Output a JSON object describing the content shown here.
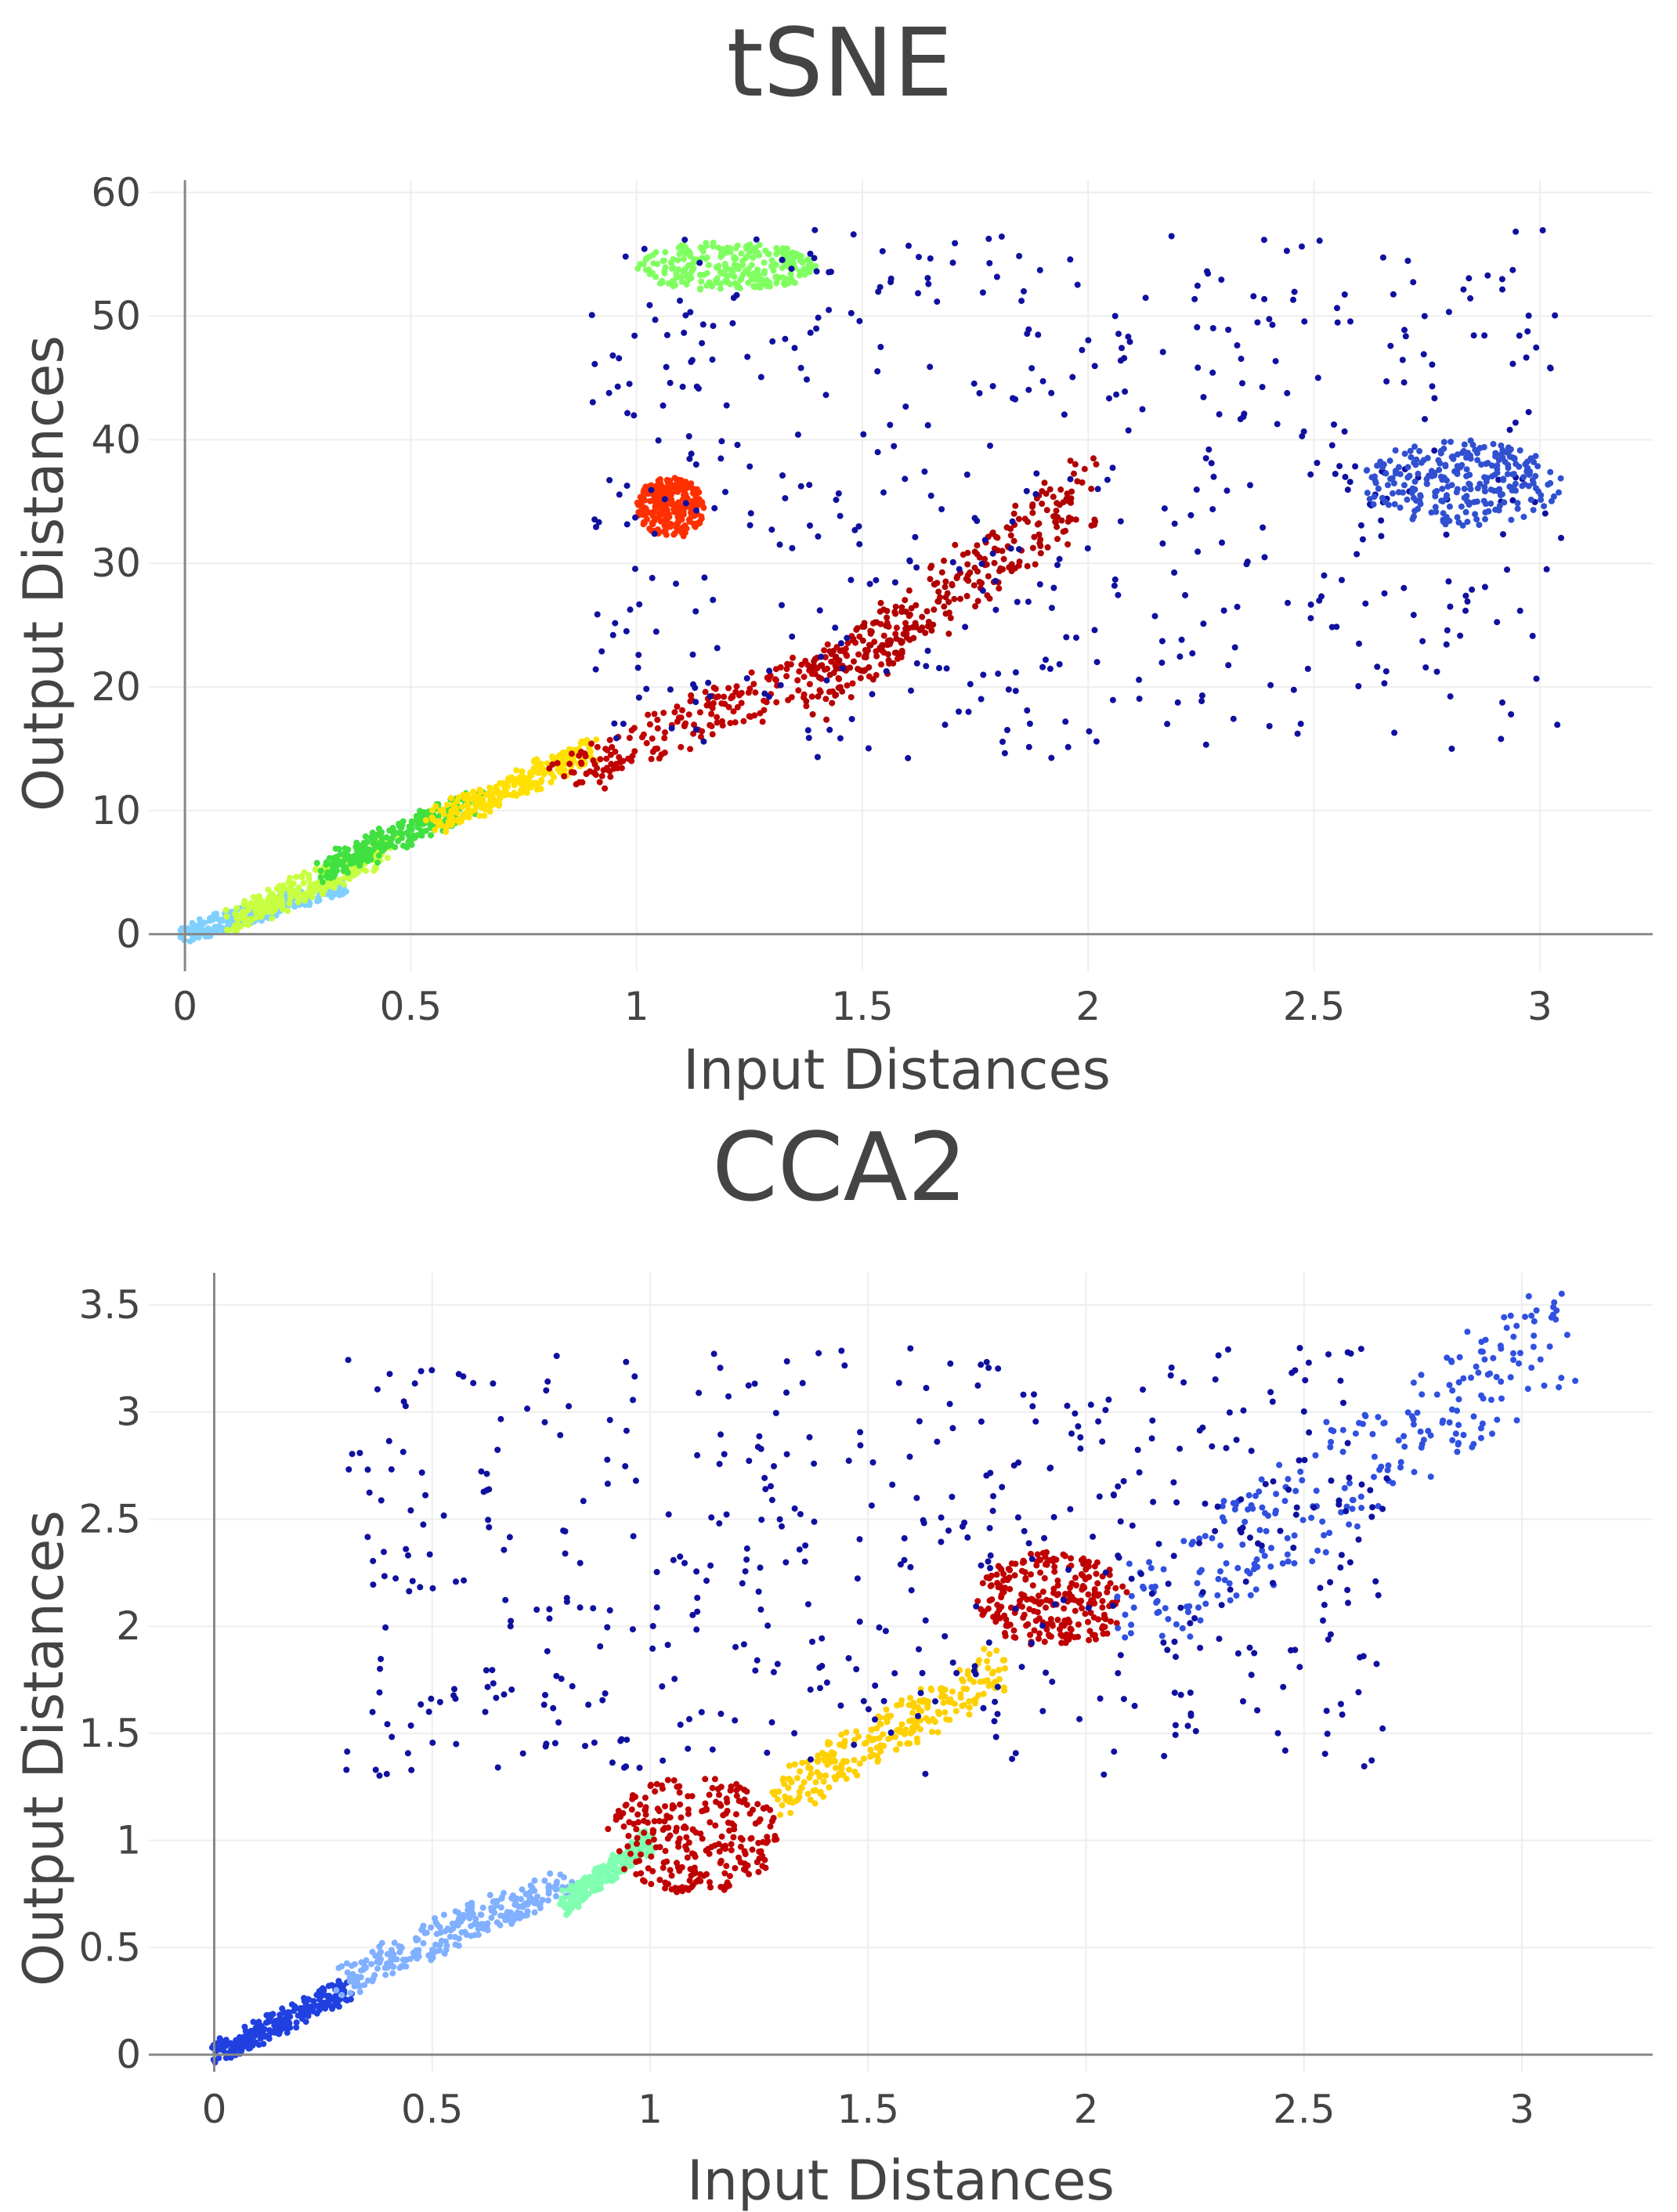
{
  "chart_data": [
    {
      "id": "tsne",
      "type": "scatter",
      "title": "tSNE",
      "xlabel": "Input Distances",
      "ylabel": "Output Distances",
      "xlim": [
        -0.08,
        3.25
      ],
      "ylim": [
        -3,
        61
      ],
      "xticks": [
        0,
        0.5,
        1,
        1.5,
        2,
        2.5,
        3
      ],
      "xtick_labels": [
        "0",
        "0.5",
        "1",
        "1.5",
        "2",
        "2.5",
        "3"
      ],
      "yticks": [
        0,
        10,
        20,
        30,
        40,
        50,
        60
      ],
      "ytick_labels": [
        "0",
        "10",
        "20",
        "30",
        "40",
        "50",
        "60"
      ],
      "colorscale": "jet (point density: blue = sparse, red = dense)",
      "clusters": [
        {
          "region": "diagonal band near origin",
          "x": [
            0.0,
            0.35
          ],
          "y": [
            0,
            4
          ],
          "color": "#7fd0ff"
        },
        {
          "region": "diagonal band",
          "x": [
            0.1,
            0.45
          ],
          "y": [
            1,
            7
          ],
          "color": "#c8ff40"
        },
        {
          "region": "diagonal band",
          "x": [
            0.3,
            0.65
          ],
          "y": [
            5,
            11
          ],
          "color": "#40e040"
        },
        {
          "region": "diagonal band",
          "x": [
            0.55,
            0.9
          ],
          "y": [
            9,
            15
          ],
          "color": "#ffe000"
        },
        {
          "region": "lower dense lobe",
          "x": [
            0.85,
            1.6
          ],
          "y": [
            13,
            24
          ],
          "color": "#c00000"
        },
        {
          "region": "upper dense lobe",
          "x": [
            1.4,
            2.0
          ],
          "y": [
            20,
            36
          ],
          "color": "#b00000"
        },
        {
          "region": "small dense spot",
          "x": [
            1.0,
            1.15
          ],
          "y": [
            32,
            37
          ],
          "color": "#ff3000"
        },
        {
          "region": "top cluster",
          "x": [
            1.0,
            1.4
          ],
          "y": [
            52,
            56
          ],
          "color": "#80ff60"
        },
        {
          "region": "sparse upper field",
          "x": [
            0.9,
            3.05
          ],
          "y": [
            14,
            57
          ],
          "color": "#1010a0"
        },
        {
          "region": "far right arm",
          "x": [
            2.6,
            3.05
          ],
          "y": [
            33,
            40
          ],
          "color": "#3050d0"
        }
      ]
    },
    {
      "id": "cca2",
      "type": "scatter",
      "title": "CCA2",
      "xlabel": "Input Distances",
      "ylabel": "Output Distances",
      "xlim": [
        -0.15,
        3.3
      ],
      "ylim": [
        -0.08,
        3.65
      ],
      "xticks": [
        0,
        0.5,
        1,
        1.5,
        2,
        2.5,
        3
      ],
      "xtick_labels": [
        "0",
        "0.5",
        "1",
        "1.5",
        "2",
        "2.5",
        "3"
      ],
      "yticks": [
        0,
        0.5,
        1,
        1.5,
        2,
        2.5,
        3,
        3.5
      ],
      "ytick_labels": [
        "0",
        "0.5",
        "1",
        "1.5",
        "2",
        "2.5",
        "3",
        "3.5"
      ],
      "colorscale": "jet (point density: blue = sparse, red = dense)",
      "clusters": [
        {
          "region": "diagonal band near origin",
          "x": [
            0.0,
            0.3
          ],
          "y": [
            0.0,
            0.3
          ],
          "color": "#2040e0"
        },
        {
          "region": "diagonal band",
          "x": [
            0.3,
            0.8
          ],
          "y": [
            0.35,
            0.8
          ],
          "color": "#80b0ff"
        },
        {
          "region": "diagonal band",
          "x": [
            0.8,
            1.0
          ],
          "y": [
            0.7,
            1.0
          ],
          "color": "#80ffb0"
        },
        {
          "region": "lower dense blob",
          "x": [
            0.9,
            1.3
          ],
          "y": [
            0.75,
            1.3
          ],
          "color": "#c00000"
        },
        {
          "region": "middle band",
          "x": [
            1.3,
            1.8
          ],
          "y": [
            1.2,
            1.8
          ],
          "color": "#ffd000"
        },
        {
          "region": "upper dense blob",
          "x": [
            1.75,
            2.1
          ],
          "y": [
            1.9,
            2.35
          ],
          "color": "#c00000"
        },
        {
          "region": "upper diagonal band",
          "x": [
            2.1,
            3.1
          ],
          "y": [
            2.0,
            3.4
          ],
          "color": "#3050e0"
        },
        {
          "region": "sparse upper field",
          "x": [
            0.3,
            2.7
          ],
          "y": [
            1.3,
            3.3
          ],
          "color": "#1010a0"
        }
      ]
    }
  ]
}
